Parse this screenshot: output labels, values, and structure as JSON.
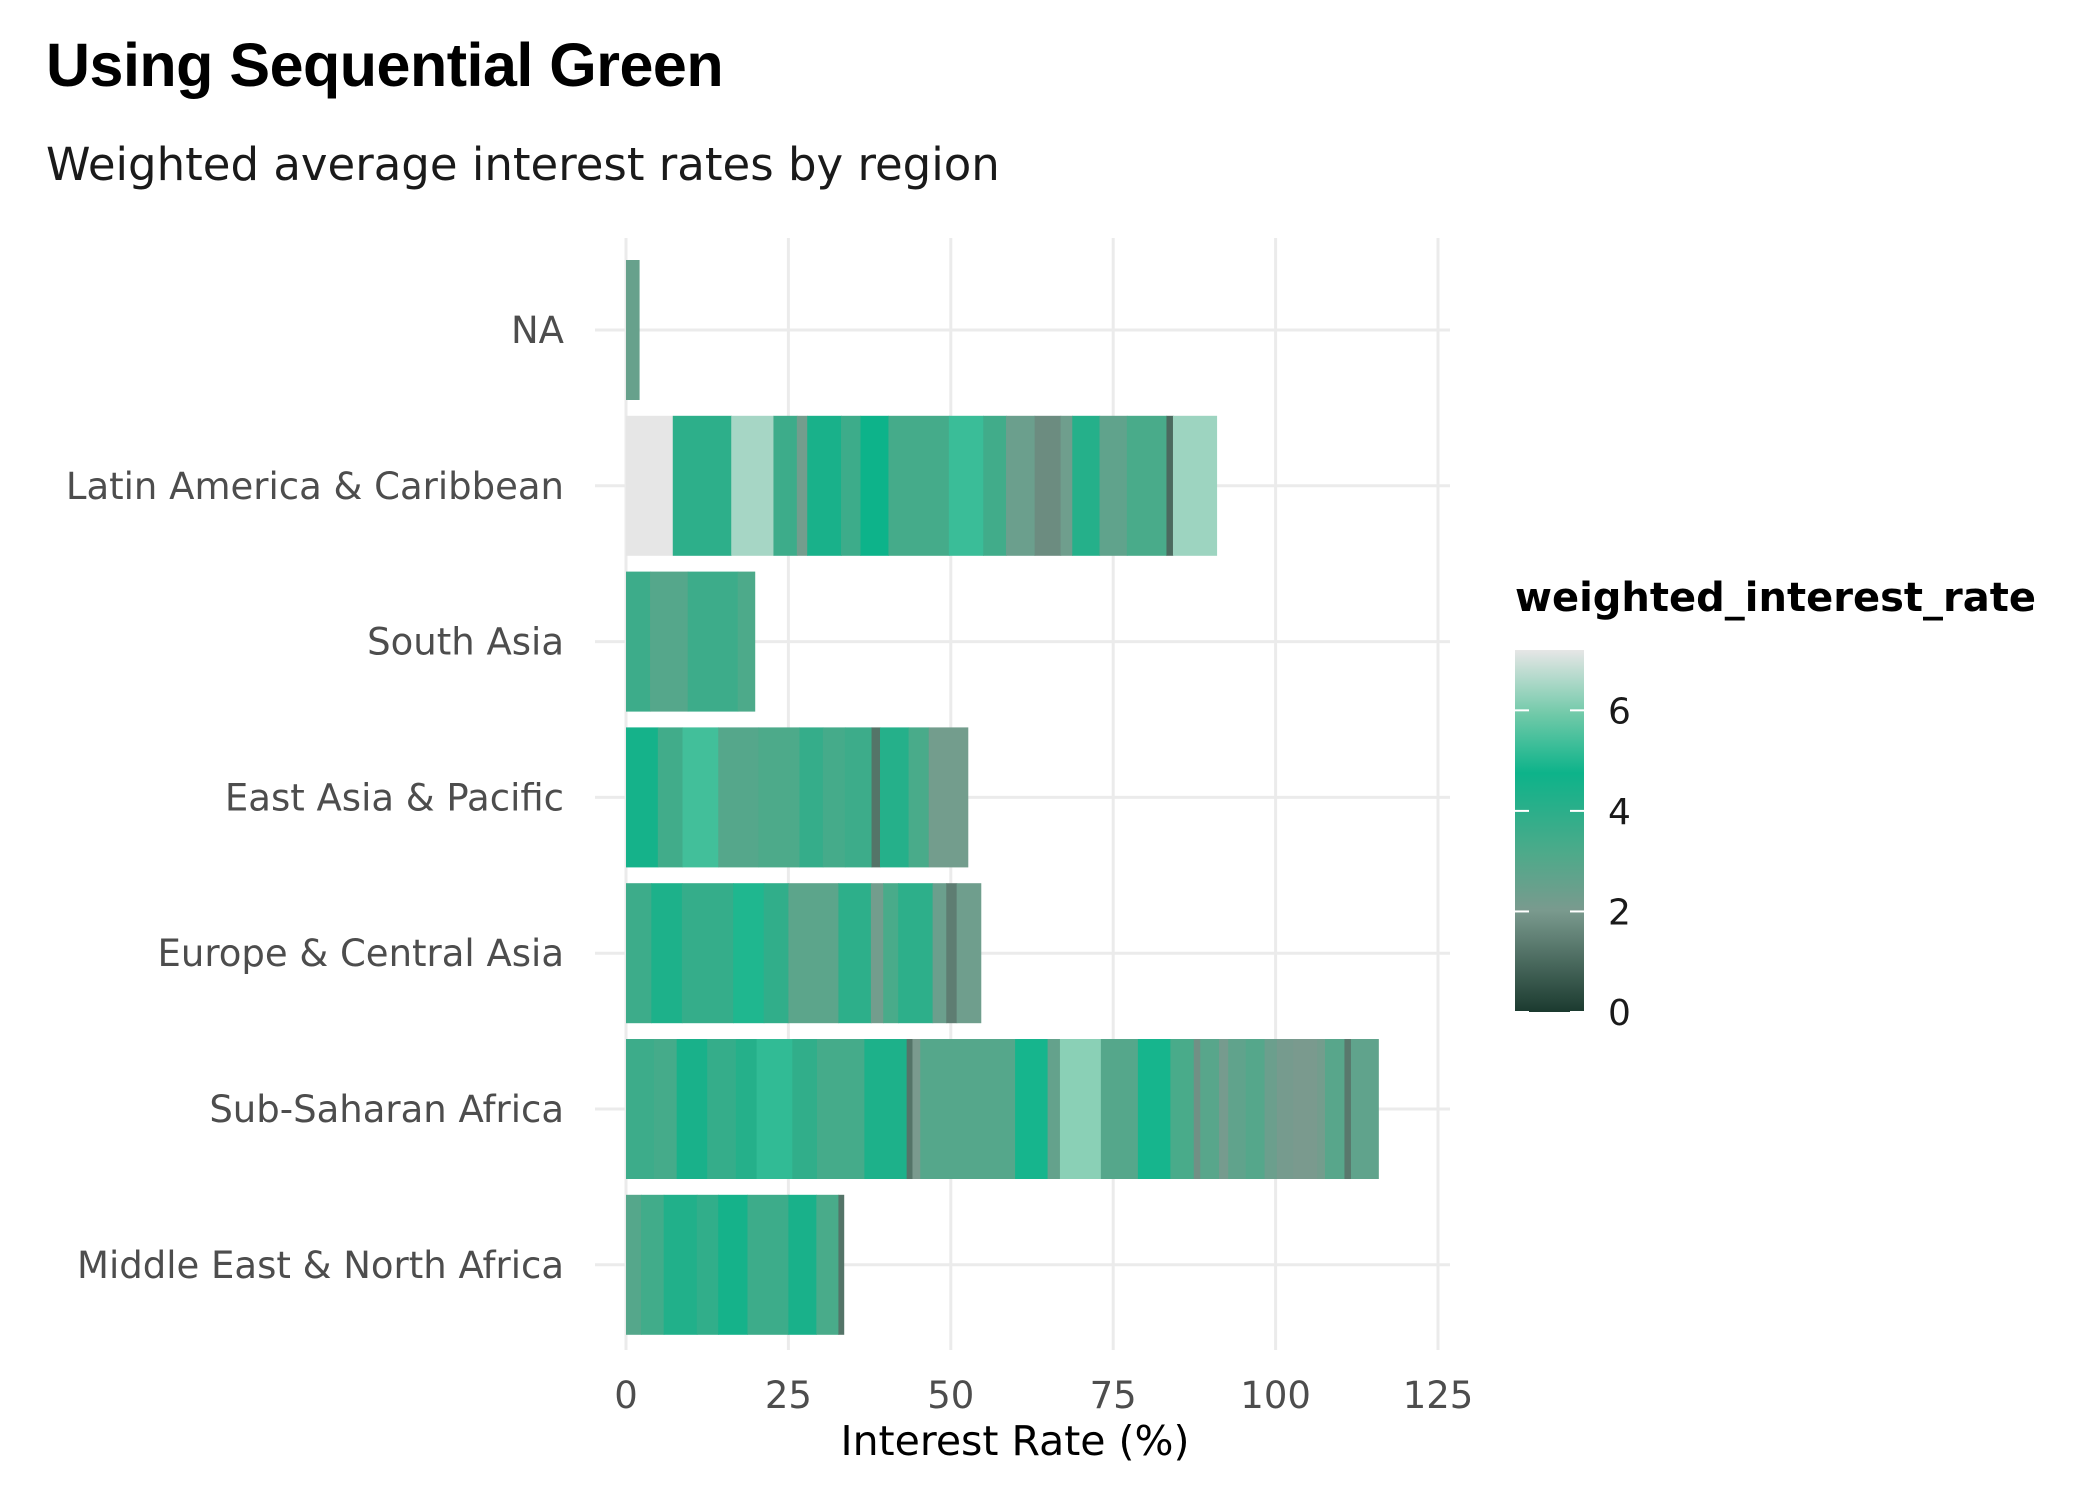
{
  "title": "Using Sequential Green",
  "subtitle": "Weighted average interest rates by region",
  "chart_data": {
    "type": "bar",
    "orientation": "horizontal",
    "stacked": true,
    "title": "Using Sequential Green",
    "subtitle": "Weighted average interest rates by region",
    "xlabel": "Interest Rate (%)",
    "ylabel": "",
    "xlim": [
      0,
      125
    ],
    "x_ticks": [
      0,
      25,
      50,
      75,
      100,
      125
    ],
    "grid": true,
    "legend": {
      "title": "weighted_interest_rate",
      "position": "right",
      "min": 0,
      "max": 7.2,
      "ticks": [
        0,
        2,
        4,
        6
      ],
      "colors": {
        "low": "#1b3a2f",
        "mid_low": "#7a9a8e",
        "mid": "#0db38a",
        "high": "#e6e6e6"
      }
    },
    "categories": [
      "NA",
      "Latin America & Caribbean",
      "South Asia",
      "East Asia & Pacific",
      "Europe & Central Asia",
      "Sub-Saharan Africa",
      "Middle East & North Africa"
    ],
    "series": [
      {
        "category": "NA",
        "segments": [
          2.0
        ],
        "rates": [
          2.5
        ]
      },
      {
        "category": "Latin America & Caribbean",
        "segments": [
          7.2,
          9.0,
          6.5,
          3.6,
          1.6,
          5.2,
          3.0,
          4.3,
          9.3,
          5.3,
          3.5,
          4.4,
          4.0,
          1.8,
          4.2,
          4.2,
          6.1,
          1.0,
          6.7
        ],
        "rates": [
          7.2,
          4.0,
          6.5,
          3.6,
          2.2,
          4.5,
          3.6,
          4.8,
          3.4,
          5.3,
          3.5,
          2.4,
          1.7,
          2.3,
          4.2,
          2.7,
          3.3,
          1.0,
          6.4
        ]
      },
      {
        "category": "South Asia",
        "segments": [
          3.7,
          5.8,
          7.7,
          2.6
        ],
        "rates": [
          3.6,
          3.0,
          3.6,
          3.2
        ]
      },
      {
        "category": "East Asia & Pacific",
        "segments": [
          4.9,
          3.8,
          5.5,
          6.2,
          6.3,
          3.6,
          3.4,
          4.1,
          1.3,
          4.4,
          3.1,
          6.0
        ],
        "rates": [
          4.6,
          3.5,
          5.4,
          3.0,
          3.2,
          3.8,
          3.4,
          3.6,
          1.2,
          4.2,
          3.3,
          2.2
        ]
      },
      {
        "category": "Europe & Central Asia",
        "segments": [
          3.9,
          4.7,
          7.9,
          4.7,
          3.8,
          7.7,
          5.0,
          1.9,
          2.3,
          5.3,
          2.1,
          1.6,
          3.7
        ],
        "rates": [
          3.6,
          4.4,
          3.8,
          5.0,
          3.9,
          2.8,
          4.0,
          2.2,
          3.3,
          4.0,
          2.4,
          1.4,
          2.3
        ]
      },
      {
        "category": "Sub-Saharan Africa",
        "segments": [
          4.3,
          3.5,
          4.7,
          4.4,
          3.2,
          5.5,
          3.8,
          7.3,
          6.5,
          0.9,
          1.2,
          14.6,
          5.0,
          1.9,
          6.3,
          5.7,
          5.0,
          3.6,
          1.0,
          2.9,
          1.4,
          2.7,
          2.9,
          1.9,
          2.5,
          3.7,
          1.2,
          3.0,
          1.0,
          4.2
        ],
        "rates": [
          3.6,
          3.4,
          4.5,
          3.8,
          4.2,
          5.2,
          3.9,
          3.4,
          4.4,
          1.2,
          2.0,
          3.0,
          4.9,
          2.6,
          6.2,
          3.0,
          4.9,
          3.3,
          1.8,
          2.9,
          2.1,
          2.7,
          3.0,
          2.4,
          2.1,
          2.0,
          2.2,
          2.9,
          1.3,
          2.7
        ]
      },
      {
        "category": "Middle East & North Africa",
        "segments": [
          2.3,
          3.5,
          5.1,
          3.3,
          4.5,
          6.3,
          4.3,
          3.4,
          0.8
        ],
        "rates": [
          3.0,
          3.5,
          4.3,
          3.9,
          4.6,
          3.6,
          4.5,
          3.3,
          1.2
        ]
      }
    ]
  }
}
